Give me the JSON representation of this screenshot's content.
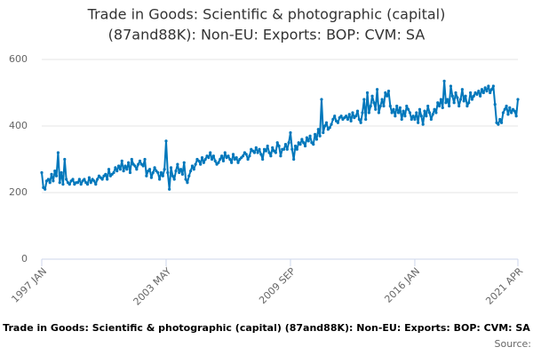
{
  "chart_data": {
    "type": "line",
    "title": [
      "Trade in Goods: Scientific & photographic (capital)",
      "(87and88K): Non-EU: Exports: BOP: CVM: SA"
    ],
    "x_label": "Trade in Goods: Scientific & photographic (capital) (87and88K): Non-EU: Exports: BOP: CVM: SA",
    "source": "Source:",
    "categories": [
      "1997 JAN",
      null,
      null,
      null,
      null,
      null,
      null,
      null,
      null,
      null,
      null,
      null,
      null,
      null,
      null,
      null,
      null,
      null,
      null,
      null,
      null,
      null,
      null,
      null,
      null,
      null,
      null,
      null,
      null,
      null,
      null,
      null,
      null,
      null,
      null,
      null,
      null,
      null,
      null,
      null,
      null,
      null,
      null,
      null,
      null,
      null,
      null,
      null,
      null,
      null,
      null,
      null,
      null,
      null,
      null,
      null,
      null,
      null,
      null,
      null,
      null,
      null,
      null,
      null,
      null,
      null,
      null,
      null,
      null,
      null,
      null,
      null,
      null,
      null,
      null,
      null,
      "2003 MAY",
      null,
      null,
      null,
      null,
      null,
      null,
      null,
      null,
      null,
      null,
      null,
      null,
      null,
      null,
      null,
      null,
      null,
      null,
      null,
      null,
      null,
      null,
      null,
      null,
      null,
      null,
      null,
      null,
      null,
      null,
      null,
      null,
      null,
      null,
      null,
      null,
      null,
      null,
      null,
      null,
      null,
      null,
      null,
      null,
      null,
      null,
      null,
      null,
      null,
      null,
      null,
      null,
      null,
      null,
      null,
      null,
      null,
      null,
      null,
      null,
      null,
      null,
      null,
      null,
      null,
      null,
      null,
      null,
      null,
      null,
      null,
      null,
      null,
      null,
      null,
      "2009 SEP",
      null,
      null,
      null,
      null,
      null,
      null,
      null,
      null,
      null,
      null,
      null,
      null,
      null,
      null,
      null,
      null,
      null,
      null,
      null,
      null,
      null,
      null,
      null,
      null,
      null,
      null,
      null,
      null,
      null,
      null,
      null,
      null,
      null,
      null,
      null,
      null,
      null,
      null,
      null,
      null,
      null,
      null,
      null,
      null,
      null,
      null,
      null,
      null,
      null,
      null,
      null,
      null,
      null,
      null,
      null,
      null,
      null,
      null,
      null,
      null,
      null,
      null,
      null,
      null,
      null,
      null,
      null,
      null,
      null,
      null,
      null,
      null,
      null,
      null,
      null,
      "2016 JAN",
      null,
      null,
      null,
      null,
      null,
      null,
      null,
      null,
      null,
      null,
      null,
      null,
      null,
      null,
      null,
      null,
      null,
      null,
      null,
      null,
      null,
      null,
      null,
      null,
      null,
      null,
      null,
      null,
      null,
      null,
      null,
      null,
      null,
      null,
      null,
      null,
      null,
      null,
      null,
      null,
      null,
      null,
      null,
      null,
      null,
      null,
      null,
      null,
      null,
      null,
      null,
      null,
      null,
      null,
      null,
      null,
      null,
      null,
      null,
      null,
      null,
      null,
      "2021 APR"
    ],
    "series": [
      {
        "color": "#0077bb",
        "values": [
          260,
          215,
          210,
          235,
          240,
          230,
          255,
          235,
          265,
          250,
          320,
          230,
          260,
          225,
          300,
          240,
          230,
          225,
          235,
          240,
          225,
          230,
          230,
          240,
          225,
          235,
          240,
          230,
          225,
          245,
          230,
          240,
          235,
          225,
          240,
          250,
          245,
          240,
          250,
          255,
          240,
          270,
          250,
          255,
          260,
          275,
          265,
          280,
          270,
          295,
          265,
          280,
          270,
          290,
          260,
          300,
          285,
          280,
          270,
          285,
          295,
          285,
          280,
          300,
          250,
          265,
          270,
          245,
          260,
          275,
          265,
          260,
          240,
          260,
          250,
          270,
          355,
          260,
          210,
          275,
          250,
          240,
          265,
          285,
          260,
          270,
          255,
          290,
          240,
          230,
          250,
          265,
          280,
          270,
          285,
          300,
          295,
          285,
          305,
          290,
          300,
          310,
          305,
          320,
          300,
          310,
          295,
          285,
          290,
          300,
          310,
          295,
          320,
          305,
          310,
          300,
          290,
          315,
          300,
          305,
          290,
          300,
          305,
          310,
          320,
          315,
          300,
          310,
          330,
          325,
          320,
          335,
          320,
          330,
          315,
          300,
          330,
          325,
          340,
          320,
          310,
          335,
          325,
          320,
          350,
          340,
          310,
          330,
          330,
          345,
          330,
          350,
          380,
          330,
          300,
          340,
          330,
          350,
          345,
          360,
          350,
          340,
          365,
          355,
          370,
          350,
          345,
          375,
          360,
          390,
          370,
          480,
          380,
          400,
          410,
          390,
          395,
          405,
          420,
          430,
          415,
          410,
          425,
          430,
          420,
          425,
          430,
          420,
          435,
          415,
          440,
          425,
          430,
          445,
          420,
          410,
          440,
          480,
          420,
          500,
          440,
          460,
          490,
          470,
          450,
          510,
          440,
          460,
          480,
          460,
          500,
          490,
          505,
          460,
          440,
          450,
          430,
          460,
          440,
          455,
          420,
          445,
          430,
          460,
          450,
          440,
          420,
          430,
          420,
          440,
          410,
          450,
          430,
          405,
          445,
          430,
          460,
          440,
          420,
          435,
          450,
          440,
          470,
          460,
          480,
          455,
          535,
          470,
          480,
          460,
          520,
          490,
          470,
          500,
          485,
          460,
          480,
          510,
          475,
          490,
          460,
          470,
          500,
          480,
          490,
          500,
          495,
          505,
          490,
          510,
          500,
          515,
          505,
          520,
          500,
          510,
          520,
          465,
          410,
          405,
          420,
          410,
          440,
          450,
          460,
          435,
          455,
          440,
          450,
          445,
          430,
          480
        ]
      }
    ],
    "ylim": [
      0,
      600
    ],
    "yticks": [
      0,
      200,
      400,
      600
    ],
    "grid": true
  }
}
